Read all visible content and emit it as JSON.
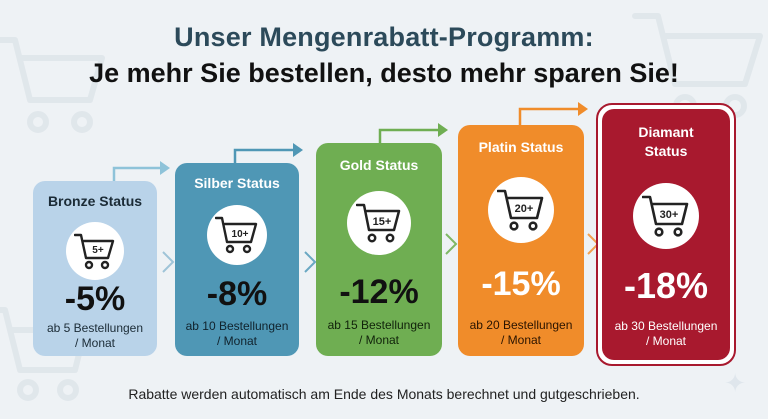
{
  "header": {
    "title_line1": "Unser Mengenrabatt-Programm:",
    "title_line2": "Je mehr Sie bestellen, desto mehr sparen Sie!"
  },
  "tiers": [
    {
      "status": "Bronze Status",
      "badge": "5+",
      "discount": "-5%",
      "desc_line1": "ab 5 Bestellungen",
      "desc_line2": "/ Monat",
      "color": "#b9d3e9"
    },
    {
      "status": "Silber Status",
      "badge": "10+",
      "discount": "-8%",
      "desc_line1": "ab 10 Bestellungen",
      "desc_line2": "/ Monat",
      "color": "#4f97b5"
    },
    {
      "status": "Gold Status",
      "badge": "15+",
      "discount": "-12%",
      "desc_line1": "ab 15 Bestellungen",
      "desc_line2": "/ Monat",
      "color": "#6fae52"
    },
    {
      "status": "Platin Status",
      "badge": "20+",
      "discount": "-15%",
      "desc_line1": "ab 20 Bestellungen",
      "desc_line2": "/ Monat",
      "color": "#f08c2a"
    },
    {
      "status_line1": "Diamant",
      "status_line2": "Status",
      "badge": "30+",
      "discount": "-18%",
      "desc_line1": "ab 30 Bestellungen",
      "desc_line2": "/ Monat",
      "color": "#a8192e"
    }
  ],
  "footer": {
    "note": "Rabatte werden automatisch am Ende des Monats berechnet und gutgeschrieben."
  }
}
